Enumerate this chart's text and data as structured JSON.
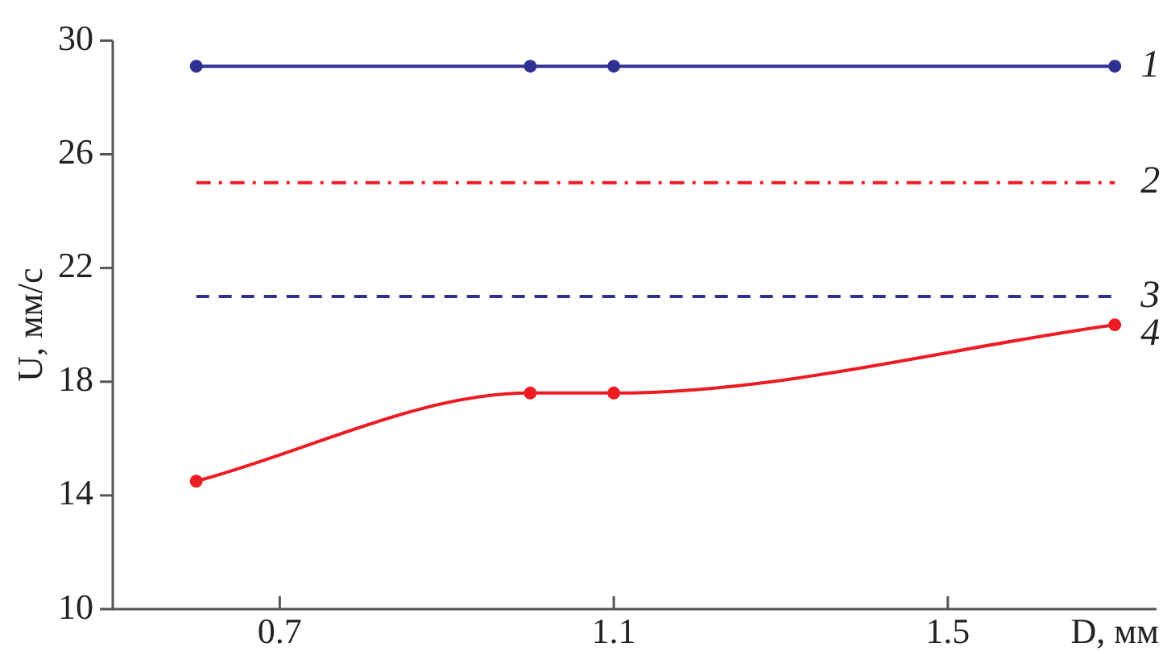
{
  "chart_data": {
    "type": "line",
    "xlabel": "D, мм",
    "ylabel": "U, мм/с",
    "xlim": [
      0.5,
      1.75
    ],
    "xticks": [
      0.7,
      1.1,
      1.5
    ],
    "ylim": [
      10,
      30
    ],
    "yticks": [
      10,
      14,
      18,
      22,
      26,
      30
    ],
    "grid": false,
    "legend": false,
    "series": [
      {
        "name": "1",
        "color": "#2e3192",
        "x": [
          0.6,
          1.0,
          1.1,
          1.7
        ],
        "values": [
          29.1,
          29.1,
          29.1,
          29.1
        ],
        "marker": "circle",
        "line_style": "solid"
      },
      {
        "name": "2",
        "color": "#ed1c24",
        "x": [
          0.6,
          1.7
        ],
        "values": [
          25,
          25
        ],
        "marker": "none",
        "line_style": "dashdot"
      },
      {
        "name": "3",
        "color": "#2e3192",
        "x": [
          0.6,
          1.7
        ],
        "values": [
          21,
          21
        ],
        "marker": "none",
        "line_style": "dashed"
      },
      {
        "name": "4",
        "color": "#ed1c24",
        "x": [
          0.6,
          1.0,
          1.1,
          1.7
        ],
        "values": [
          14.5,
          17.6,
          17.6,
          20.0
        ],
        "marker": "circle",
        "line_style": "solid"
      }
    ]
  }
}
